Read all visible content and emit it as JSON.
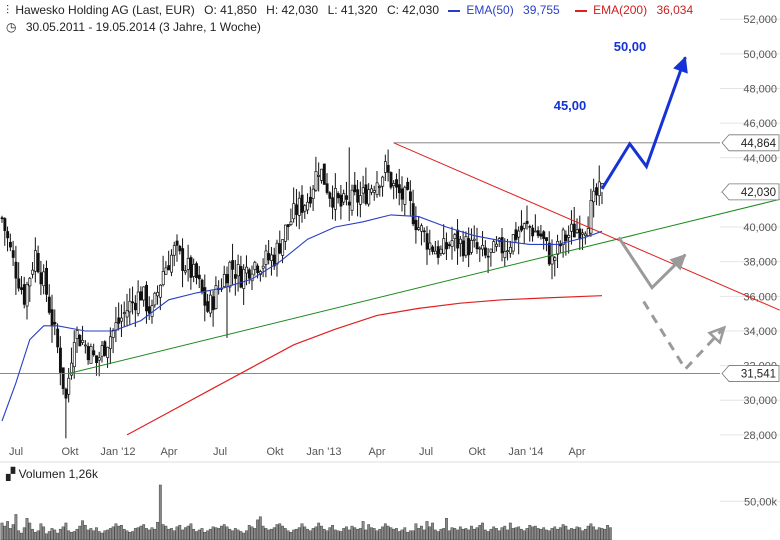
{
  "header": {
    "instrument": "Hawesko Holding AG (Last, EUR)",
    "open": "O: 41,850",
    "high": "H: 42,030",
    "low": "L: 41,320",
    "close": "C: 42,030",
    "range": "30.05.2011 - 19.05.2014 (3 Jahre, 1 Woche)",
    "ema50_label": "EMA(50)",
    "ema50_value": "39,755",
    "ema200_label": "EMA(200)",
    "ema200_value": "36,034"
  },
  "colors": {
    "candle": "#111111",
    "ema50": "#2a3fc7",
    "ema200": "#e02020",
    "trend_support": "#1a8a1a",
    "trend_resistance": "#e02020",
    "arrow_bull": "#1532d6",
    "arrow_grey": "#9a9a9a"
  },
  "chart_data": {
    "type": "candlestick",
    "x_tick_labels": [
      "Jul",
      "Okt",
      "Jan '12",
      "Apr",
      "Jul",
      "Okt",
      "Jan '13",
      "Apr",
      "Jul",
      "Okt",
      "Jan '14",
      "Apr"
    ],
    "y_tick_labels": [
      "28,000",
      "30,000",
      "32,000",
      "34,000",
      "36,000",
      "38,000",
      "40,000",
      "42,000",
      "44,000",
      "46,000",
      "48,000",
      "50,000",
      "52,000"
    ],
    "ylim": [
      27.3,
      52.3
    ],
    "price_path": [
      [
        0,
        40.5
      ],
      [
        4,
        38.0
      ],
      [
        8,
        36.0
      ],
      [
        12,
        38.5
      ],
      [
        16,
        36.2
      ],
      [
        20,
        33.0
      ],
      [
        23,
        30.0
      ],
      [
        26,
        34.0
      ],
      [
        30,
        33.2
      ],
      [
        34,
        32.2
      ],
      [
        38,
        33.5
      ],
      [
        42,
        34.5
      ],
      [
        46,
        35.5
      ],
      [
        50,
        36.2
      ],
      [
        54,
        35.0
      ],
      [
        58,
        37.5
      ],
      [
        62,
        38.6
      ],
      [
        66,
        37.8
      ],
      [
        70,
        37.0
      ],
      [
        74,
        35.2
      ],
      [
        78,
        36.5
      ],
      [
        82,
        37.8
      ],
      [
        86,
        37.2
      ],
      [
        90,
        37.9
      ],
      [
        94,
        38.0
      ],
      [
        98,
        38.3
      ],
      [
        102,
        39.8
      ],
      [
        106,
        41.0
      ],
      [
        110,
        41.6
      ],
      [
        114,
        43.5
      ],
      [
        118,
        42.0
      ],
      [
        122,
        41.2
      ],
      [
        126,
        41.5
      ],
      [
        130,
        41.8
      ],
      [
        134,
        42.6
      ],
      [
        138,
        43.3
      ],
      [
        142,
        42.0
      ],
      [
        146,
        41.5
      ],
      [
        150,
        40.0
      ],
      [
        154,
        39.0
      ],
      [
        158,
        38.5
      ],
      [
        162,
        39.2
      ],
      [
        166,
        39.0
      ],
      [
        170,
        38.8
      ],
      [
        174,
        38.2
      ],
      [
        178,
        38.6
      ],
      [
        182,
        39.0
      ],
      [
        186,
        39.8
      ],
      [
        190,
        40.0
      ],
      [
        194,
        39.5
      ],
      [
        198,
        38.0
      ],
      [
        202,
        39.3
      ],
      [
        206,
        39.8
      ],
      [
        210,
        40.2
      ],
      [
        214,
        41.8
      ],
      [
        216,
        42.03
      ]
    ],
    "ema50_path": [
      [
        0,
        28.8
      ],
      [
        5,
        31.0
      ],
      [
        10,
        33.5
      ],
      [
        15,
        34.3
      ],
      [
        20,
        34.3
      ],
      [
        30,
        34.0
      ],
      [
        40,
        34.0
      ],
      [
        50,
        34.6
      ],
      [
        60,
        35.8
      ],
      [
        70,
        36.2
      ],
      [
        80,
        36.5
      ],
      [
        90,
        37.0
      ],
      [
        100,
        38.0
      ],
      [
        110,
        39.3
      ],
      [
        120,
        40.0
      ],
      [
        130,
        40.3
      ],
      [
        140,
        40.7
      ],
      [
        150,
        40.6
      ],
      [
        160,
        40.0
      ],
      [
        170,
        39.5
      ],
      [
        180,
        39.2
      ],
      [
        190,
        39.0
      ],
      [
        200,
        39.0
      ],
      [
        210,
        39.4
      ],
      [
        216,
        39.755
      ]
    ],
    "ema200_path": [
      [
        45,
        28.0
      ],
      [
        60,
        29.3
      ],
      [
        75,
        30.6
      ],
      [
        90,
        31.9
      ],
      [
        105,
        33.2
      ],
      [
        120,
        34.1
      ],
      [
        135,
        34.9
      ],
      [
        150,
        35.3
      ],
      [
        165,
        35.6
      ],
      [
        180,
        35.8
      ],
      [
        195,
        35.9
      ],
      [
        210,
        36.0
      ],
      [
        216,
        36.034
      ]
    ],
    "levels": {
      "resistance_label": "44,864",
      "resistance_value": 44.864,
      "support_label": "31,541",
      "support_value": 31.541,
      "last_label": "42,030",
      "last_value": 42.03
    },
    "trend_support": [
      [
        24,
        31.541
      ],
      [
        280,
        41.6
      ]
    ],
    "trend_resistance": [
      [
        141,
        44.864
      ],
      [
        280,
        35.2
      ]
    ],
    "annotations": {
      "target_1": "45,00",
      "target_2": "50,00"
    },
    "bull_arrow_path": [
      [
        216,
        42.2
      ],
      [
        226,
        44.8
      ],
      [
        232,
        43.5
      ],
      [
        246,
        49.8
      ]
    ],
    "grey_arrow_path": [
      [
        222,
        39.4
      ],
      [
        234,
        36.5
      ],
      [
        246,
        38.4
      ]
    ],
    "grey_dashed_arrow_path": [
      [
        231,
        35.7
      ],
      [
        246,
        31.8
      ],
      [
        260,
        34.2
      ]
    ],
    "volume": {
      "label": "Volumen",
      "value": "1,26k",
      "tick_label": "50,00k",
      "tick_value": 50,
      "max": 80,
      "bars": [
        22,
        18,
        24,
        15,
        20,
        33,
        12,
        9,
        16,
        28,
        22,
        14,
        10,
        12,
        21,
        17,
        8,
        11,
        15,
        13,
        9,
        14,
        17,
        22,
        12,
        10,
        11,
        14,
        18,
        25,
        19,
        13,
        15,
        12,
        16,
        11,
        9,
        12,
        13,
        15,
        17,
        21,
        18,
        19,
        14,
        12,
        10,
        11,
        15,
        16,
        18,
        20,
        15,
        13,
        16,
        14,
        23,
        71,
        20,
        18,
        14,
        15,
        12,
        17,
        19,
        13,
        16,
        18,
        21,
        14,
        11,
        13,
        15,
        10,
        12,
        14,
        17,
        16,
        15,
        18,
        20,
        17,
        14,
        12,
        15,
        13,
        11,
        9,
        12,
        19,
        17,
        15,
        26,
        30,
        18,
        15,
        13,
        14,
        16,
        20,
        21,
        18,
        15,
        12,
        10,
        13,
        14,
        16,
        21,
        17,
        14,
        12,
        15,
        17,
        22,
        18,
        14,
        12,
        16,
        19,
        13,
        12,
        11,
        15,
        17,
        13,
        18,
        16,
        14,
        15,
        24,
        13,
        20,
        16,
        15,
        12,
        14,
        17,
        21,
        18,
        16,
        14,
        15,
        11,
        13,
        16,
        10,
        12,
        12,
        21,
        15,
        18,
        13,
        24,
        17,
        22,
        13,
        11,
        14,
        15,
        28,
        12,
        16,
        15,
        13,
        17,
        14,
        15,
        13,
        18,
        14,
        16,
        19,
        22,
        13,
        11,
        14,
        17,
        15,
        12,
        16,
        18,
        13,
        22,
        15,
        16,
        17,
        14,
        12,
        15,
        19,
        17,
        18,
        15,
        14,
        16,
        13,
        12,
        15,
        17,
        14,
        16,
        20,
        18,
        13,
        15,
        14,
        17,
        16,
        12,
        14,
        18,
        21,
        17,
        13,
        16,
        15,
        14,
        19,
        16
      ]
    }
  }
}
